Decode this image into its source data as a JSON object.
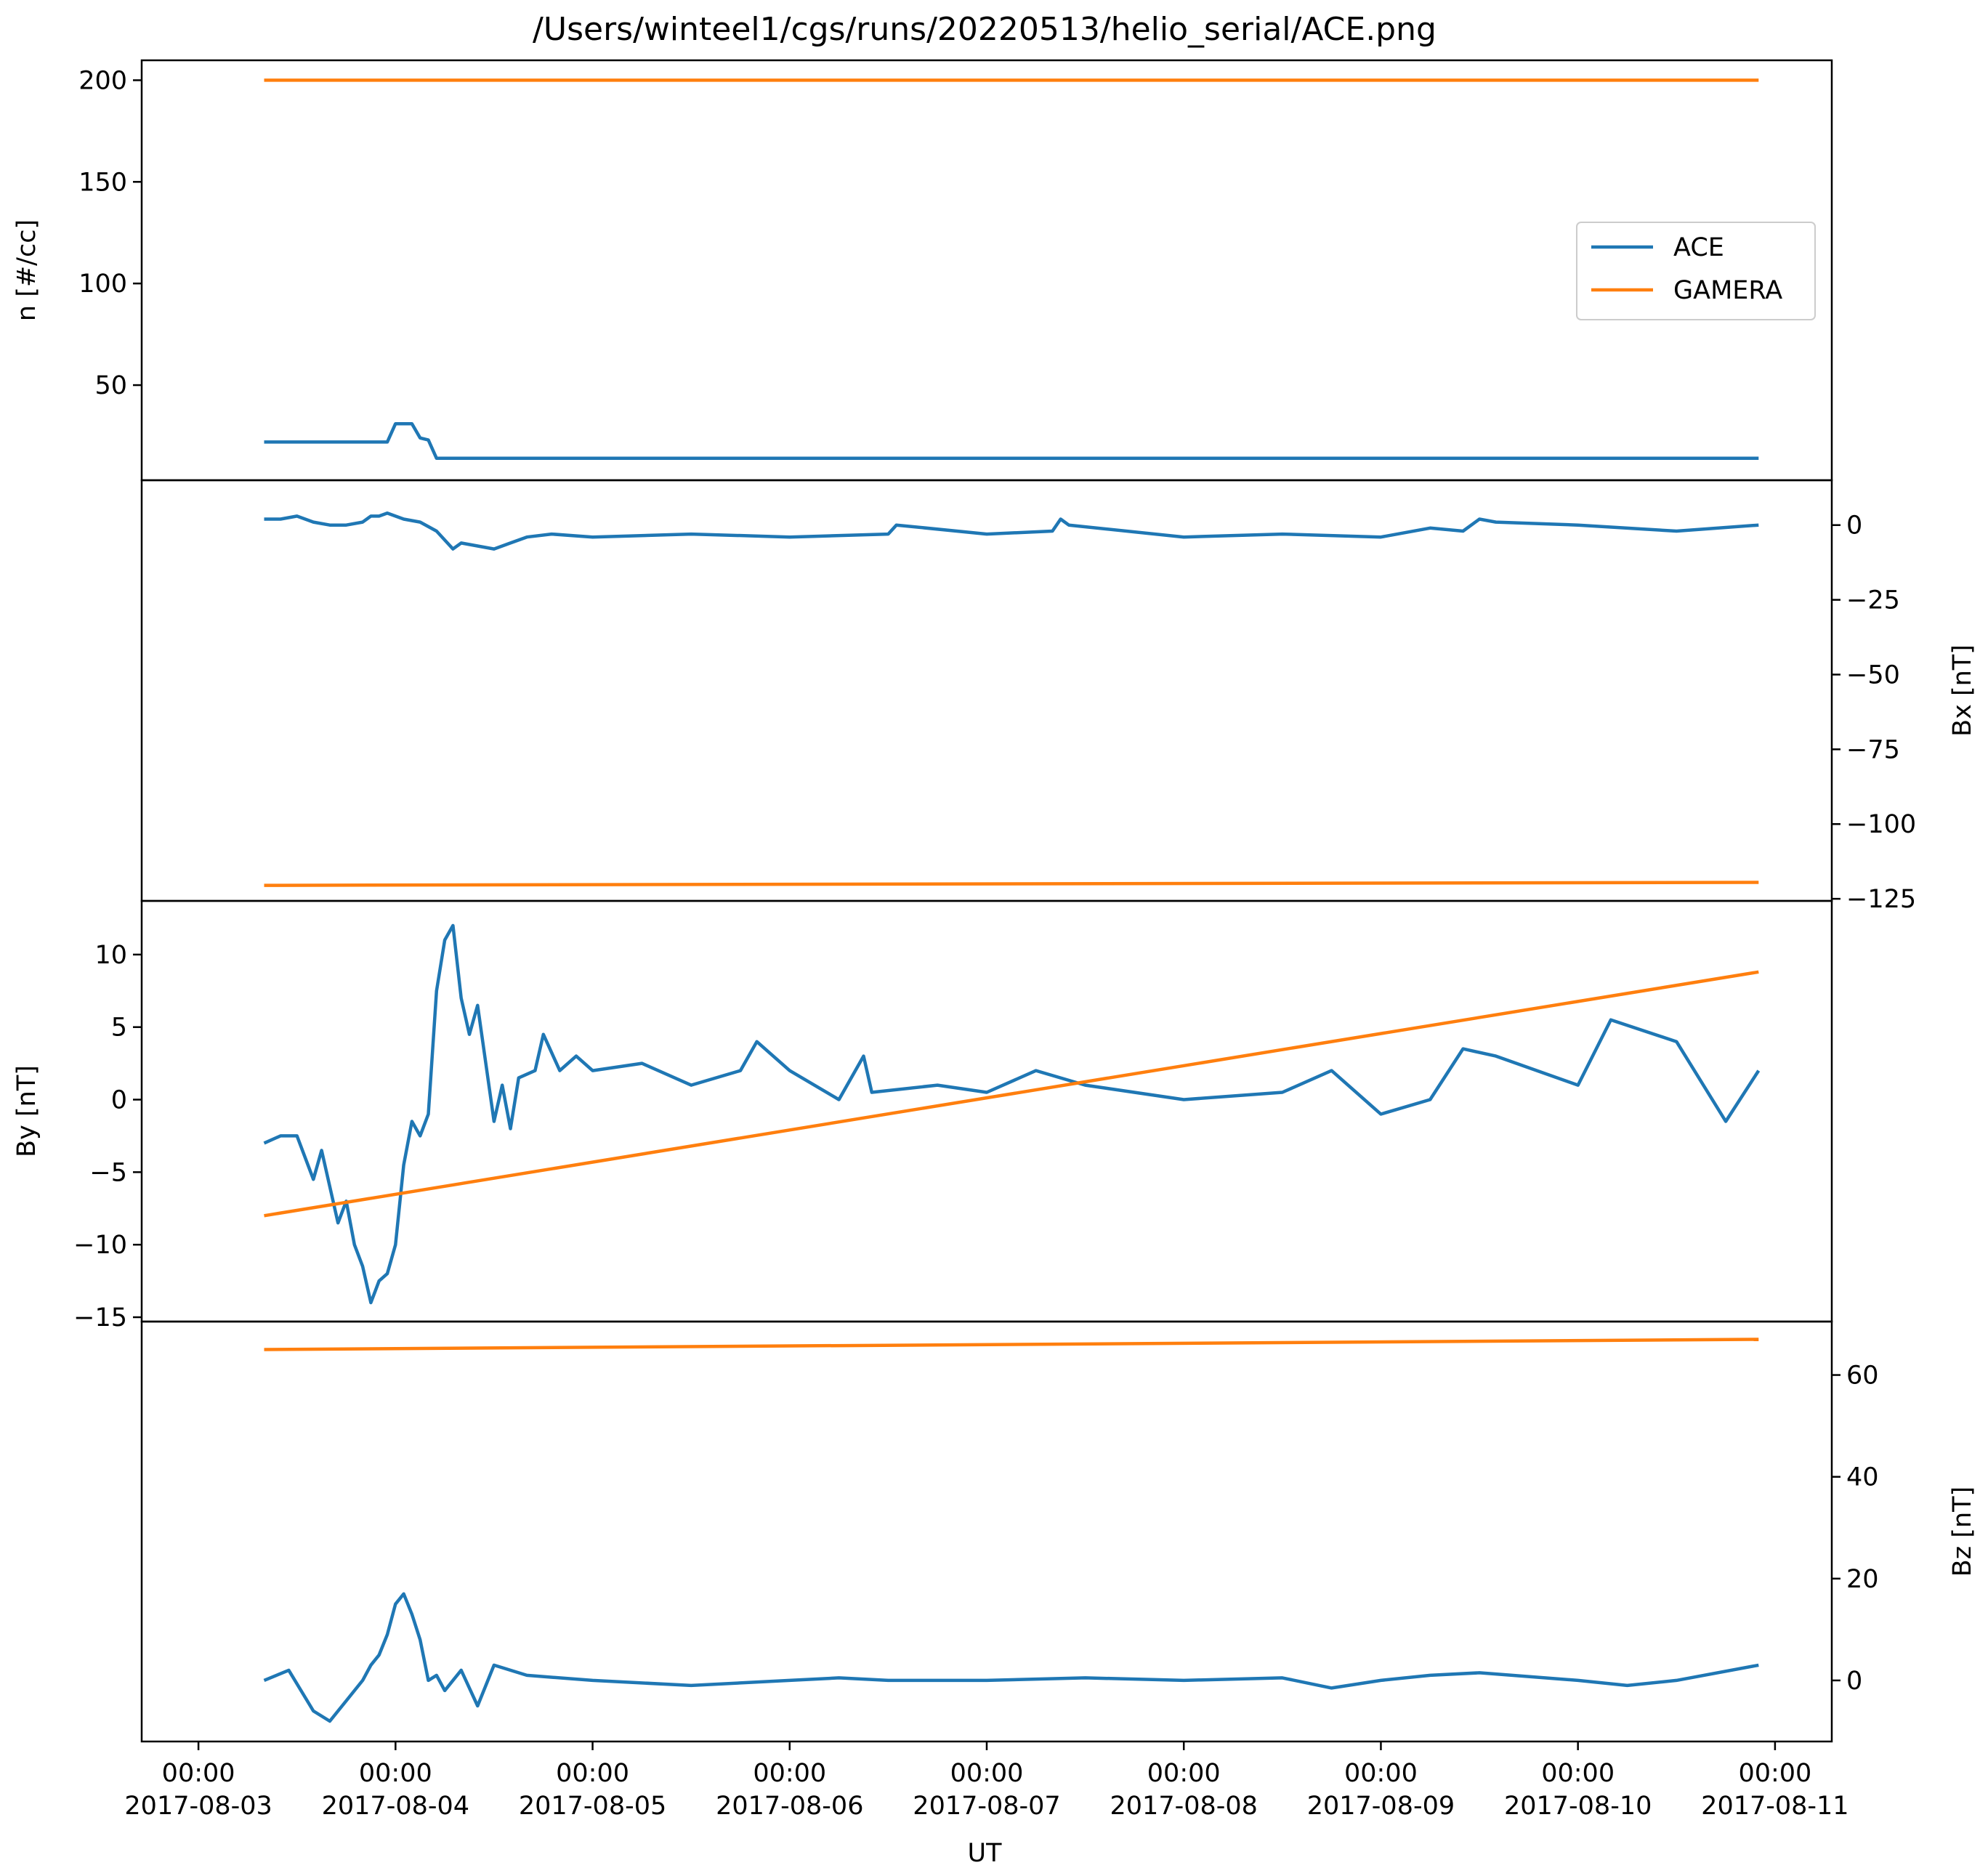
{
  "title": "/Users/winteel1/cgs/runs/20220513/helio_serial/ACE.png",
  "colors": {
    "ACE": "#1f77b4",
    "GAMERA": "#ff7f0e"
  },
  "legend": {
    "placement": "upper-right",
    "entries": [
      "ACE",
      "GAMERA"
    ]
  },
  "x_axis": {
    "label": "UT",
    "ticks": [
      {
        "date": "2017-08-03",
        "time": "00:00"
      },
      {
        "date": "2017-08-04",
        "time": "00:00"
      },
      {
        "date": "2017-08-05",
        "time": "00:00"
      },
      {
        "date": "2017-08-06",
        "time": "00:00"
      },
      {
        "date": "2017-08-07",
        "time": "00:00"
      },
      {
        "date": "2017-08-08",
        "time": "00:00"
      },
      {
        "date": "2017-08-09",
        "time": "00:00"
      },
      {
        "date": "2017-08-10",
        "time": "00:00"
      },
      {
        "date": "2017-08-11",
        "time": "00:00"
      }
    ]
  },
  "chart_data": [
    {
      "type": "line",
      "ylabel": "n [#/cc]",
      "yaxis_side": "left",
      "ylim": [
        3.2,
        209.8
      ],
      "yticks": [
        50,
        100,
        150,
        200
      ],
      "x": [
        "2017-08-03 08:00",
        "2017-08-04 00:00",
        "2017-08-04 06:00",
        "2017-08-10 22:00"
      ],
      "series": [
        {
          "name": "ACE",
          "x": [
            "2017-08-03 08:00",
            "2017-08-03 23:00",
            "2017-08-04 00:00",
            "2017-08-04 02:00",
            "2017-08-04 03:00",
            "2017-08-04 04:00",
            "2017-08-04 05:00",
            "2017-08-10 22:00"
          ],
          "values": [
            22,
            22,
            31,
            31,
            24,
            23,
            14,
            14
          ]
        },
        {
          "name": "GAMERA",
          "x": [
            "2017-08-03 08:00",
            "2017-08-10 22:00"
          ],
          "values": [
            200,
            200
          ]
        }
      ]
    },
    {
      "type": "line",
      "ylabel": "Bx [nT]",
      "yaxis_side": "right",
      "ylim": [
        -125.7,
        15.0
      ],
      "yticks": [
        0,
        -25,
        -50,
        -75,
        -100,
        -125
      ],
      "series": [
        {
          "name": "ACE",
          "x": [
            "2017-08-03 08:00",
            "2017-08-03 10:00",
            "2017-08-03 12:00",
            "2017-08-03 14:00",
            "2017-08-03 16:00",
            "2017-08-03 18:00",
            "2017-08-03 20:00",
            "2017-08-03 21:00",
            "2017-08-03 22:00",
            "2017-08-03 23:00",
            "2017-08-04 01:00",
            "2017-08-04 03:00",
            "2017-08-04 05:00",
            "2017-08-04 07:00",
            "2017-08-04 08:00",
            "2017-08-04 10:00",
            "2017-08-04 12:00",
            "2017-08-04 14:00",
            "2017-08-04 16:00",
            "2017-08-04 19:00",
            "2017-08-05 00:00",
            "2017-08-05 12:00",
            "2017-08-06 00:00",
            "2017-08-06 12:00",
            "2017-08-06 13:00",
            "2017-08-07 00:00",
            "2017-08-07 08:00",
            "2017-08-07 09:00",
            "2017-08-07 10:00",
            "2017-08-08 00:00",
            "2017-08-08 12:00",
            "2017-08-09 00:00",
            "2017-08-09 06:00",
            "2017-08-09 10:00",
            "2017-08-09 12:00",
            "2017-08-09 14:00",
            "2017-08-10 00:00",
            "2017-08-10 12:00",
            "2017-08-10 22:00"
          ],
          "values": [
            2,
            2,
            3,
            1,
            0,
            0,
            1,
            3,
            3,
            4,
            2,
            1,
            -2,
            -8,
            -6,
            -7,
            -8,
            -6,
            -4,
            -3,
            -4,
            -3,
            -4,
            -3,
            0,
            -3,
            -2,
            2,
            0,
            -4,
            -3,
            -4,
            -1,
            -2,
            2,
            1,
            0,
            -2,
            0
          ]
        },
        {
          "name": "GAMERA",
          "x": [
            "2017-08-03 08:00",
            "2017-08-10 22:00"
          ],
          "values": [
            -120.5,
            -119.5
          ]
        }
      ]
    },
    {
      "type": "line",
      "ylabel": "By [nT]",
      "yaxis_side": "left",
      "ylim": [
        -15.3,
        13.7
      ],
      "yticks": [
        10,
        5,
        0,
        -5,
        -10,
        -15
      ],
      "series": [
        {
          "name": "ACE",
          "x": [
            "2017-08-03 08:00",
            "2017-08-03 10:00",
            "2017-08-03 12:00",
            "2017-08-03 14:00",
            "2017-08-03 15:00",
            "2017-08-03 17:00",
            "2017-08-03 18:00",
            "2017-08-03 19:00",
            "2017-08-03 20:00",
            "2017-08-03 21:00",
            "2017-08-03 22:00",
            "2017-08-03 23:00",
            "2017-08-04 00:00",
            "2017-08-04 01:00",
            "2017-08-04 02:00",
            "2017-08-04 03:00",
            "2017-08-04 04:00",
            "2017-08-04 05:00",
            "2017-08-04 06:00",
            "2017-08-04 07:00",
            "2017-08-04 08:00",
            "2017-08-04 09:00",
            "2017-08-04 10:00",
            "2017-08-04 12:00",
            "2017-08-04 13:00",
            "2017-08-04 14:00",
            "2017-08-04 15:00",
            "2017-08-04 17:00",
            "2017-08-04 18:00",
            "2017-08-04 20:00",
            "2017-08-04 22:00",
            "2017-08-05 00:00",
            "2017-08-05 06:00",
            "2017-08-05 12:00",
            "2017-08-05 18:00",
            "2017-08-05 20:00",
            "2017-08-06 00:00",
            "2017-08-06 06:00",
            "2017-08-06 09:00",
            "2017-08-06 10:00",
            "2017-08-06 18:00",
            "2017-08-07 00:00",
            "2017-08-07 06:00",
            "2017-08-07 12:00",
            "2017-08-08 00:00",
            "2017-08-08 12:00",
            "2017-08-08 18:00",
            "2017-08-09 00:00",
            "2017-08-09 06:00",
            "2017-08-09 10:00",
            "2017-08-09 14:00",
            "2017-08-10 00:00",
            "2017-08-10 04:00",
            "2017-08-10 12:00",
            "2017-08-10 18:00",
            "2017-08-10 22:00"
          ],
          "values": [
            -3,
            -2.5,
            -2.5,
            -5.5,
            -3.5,
            -8.5,
            -7,
            -10,
            -11.5,
            -14,
            -12.5,
            -12,
            -10,
            -4.5,
            -1.5,
            -2.5,
            -1,
            7.5,
            11,
            12,
            7,
            4.5,
            6.5,
            -1.5,
            1,
            -2,
            1.5,
            2,
            4.5,
            2,
            3,
            2,
            2.5,
            1,
            2,
            4,
            2,
            0,
            3,
            0.5,
            1,
            0.5,
            2,
            1,
            0,
            0.5,
            2,
            -1,
            0,
            3.5,
            3,
            1,
            5.5,
            4,
            -1.5,
            2
          ]
        },
        {
          "name": "GAMERA",
          "x": [
            "2017-08-03 08:00",
            "2017-08-10 22:00"
          ],
          "values": [
            -8,
            8.8
          ]
        }
      ]
    },
    {
      "type": "line",
      "ylabel": "Bz [nT]",
      "yaxis_side": "right",
      "ylim": [
        -12,
        70.5
      ],
      "yticks": [
        60,
        40,
        20,
        0
      ],
      "series": [
        {
          "name": "ACE",
          "x": [
            "2017-08-03 08:00",
            "2017-08-03 11:00",
            "2017-08-03 14:00",
            "2017-08-03 16:00",
            "2017-08-03 18:00",
            "2017-08-03 20:00",
            "2017-08-03 21:00",
            "2017-08-03 22:00",
            "2017-08-03 23:00",
            "2017-08-04 00:00",
            "2017-08-04 01:00",
            "2017-08-04 02:00",
            "2017-08-04 03:00",
            "2017-08-04 04:00",
            "2017-08-04 05:00",
            "2017-08-04 06:00",
            "2017-08-04 08:00",
            "2017-08-04 10:00",
            "2017-08-04 12:00",
            "2017-08-04 14:00",
            "2017-08-04 16:00",
            "2017-08-05 00:00",
            "2017-08-05 12:00",
            "2017-08-06 00:00",
            "2017-08-06 06:00",
            "2017-08-06 12:00",
            "2017-08-07 00:00",
            "2017-08-07 12:00",
            "2017-08-08 00:00",
            "2017-08-08 12:00",
            "2017-08-08 18:00",
            "2017-08-09 00:00",
            "2017-08-09 06:00",
            "2017-08-09 12:00",
            "2017-08-10 00:00",
            "2017-08-10 06:00",
            "2017-08-10 12:00",
            "2017-08-10 22:00"
          ],
          "values": [
            0,
            2,
            -6,
            -8,
            -4,
            0,
            3,
            5,
            9,
            15,
            17,
            13,
            8,
            0,
            1,
            -2,
            2,
            -5,
            3,
            2,
            1,
            0,
            -1,
            0,
            0.5,
            0,
            0,
            0.5,
            0,
            0.5,
            -1.5,
            0,
            1,
            1.5,
            0,
            -1,
            0,
            3
          ]
        },
        {
          "name": "GAMERA",
          "x": [
            "2017-08-03 08:00",
            "2017-08-10 22:00"
          ],
          "values": [
            65,
            67
          ]
        }
      ]
    }
  ]
}
